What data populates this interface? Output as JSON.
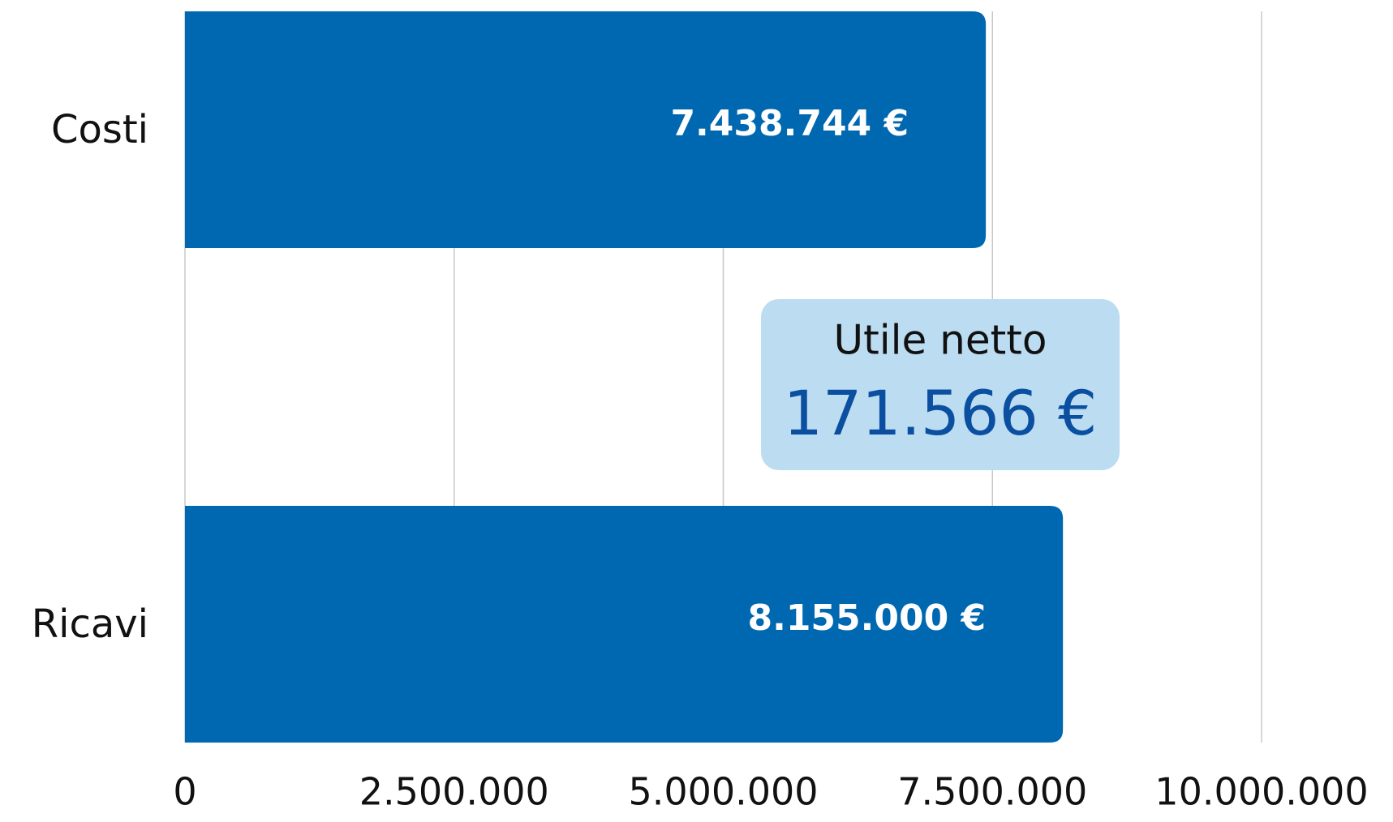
{
  "chart_data": {
    "type": "barh",
    "categories": [
      "Costi",
      "Ricavi"
    ],
    "values": [
      7438744,
      8155000
    ],
    "value_labels": [
      "7.438.744 €",
      "8.155.000 €"
    ],
    "color": "#0068b0",
    "xlim": [
      0,
      10000000
    ],
    "xticks": [
      0,
      {
        "value": 2500000,
        "label": "2.500.000"
      },
      {
        "value": 5000000,
        "label": "5.000.000"
      },
      {
        "value": 7500000,
        "label": "7.500.000"
      },
      {
        "value": 10000000,
        "label": "10.000.000"
      }
    ],
    "grid": true,
    "annotation": {
      "label": "Utile netto",
      "value": 171566,
      "value_label": "171.566 €"
    }
  }
}
